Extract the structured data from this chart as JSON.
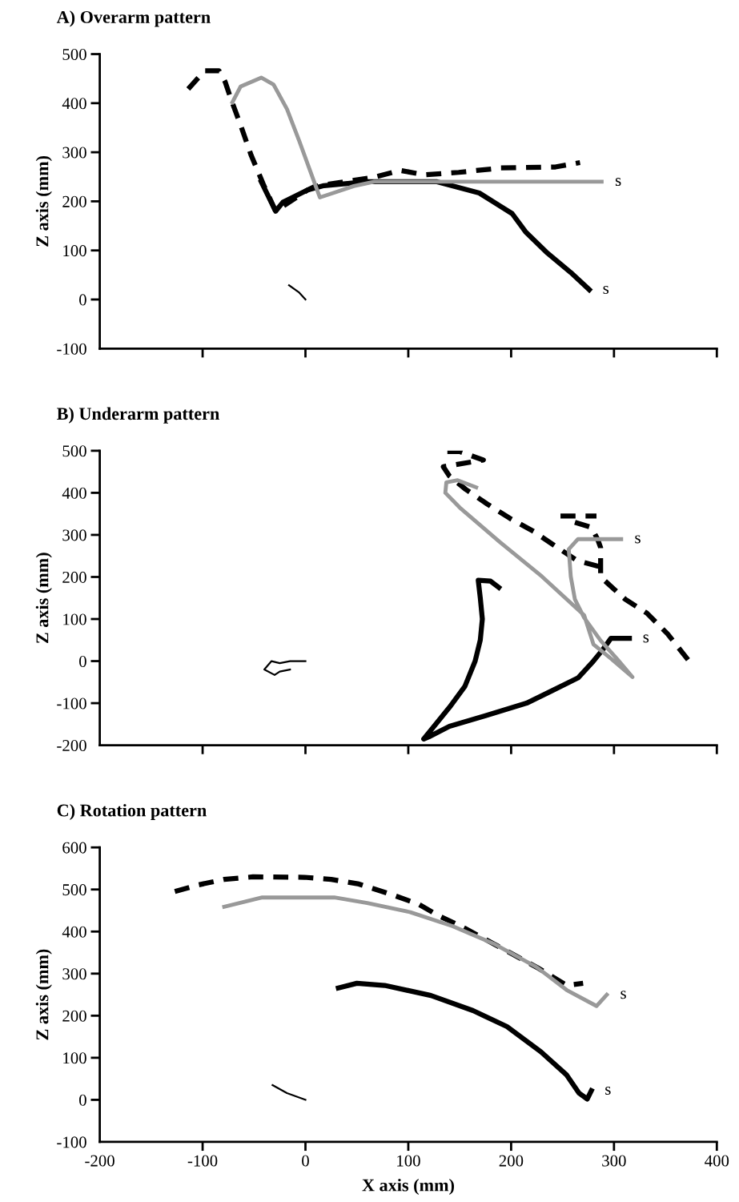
{
  "chart_data": [
    {
      "type": "line",
      "title": "A) Overarm pattern",
      "ylabel": "Z axis (mm)",
      "xlim": [
        -200,
        400
      ],
      "xticks": [
        -200,
        -100,
        0,
        100,
        200,
        300,
        400
      ],
      "ylim": [
        -100,
        500
      ],
      "yticks": [
        -100,
        0,
        100,
        200,
        300,
        400,
        500
      ],
      "tick_labels": "y",
      "grid": false,
      "legend": false,
      "series": [
        {
          "name": "s",
          "color": "#000000",
          "line_style": "solid",
          "x": [
            -43,
            -29,
            -22,
            2,
            18,
            60,
            128,
            169,
            201,
            214,
            234,
            258,
            276
          ],
          "values": [
            240,
            180,
            198,
            223,
            232,
            240,
            240,
            217,
            175,
            138,
            97,
            55,
            20
          ]
        },
        {
          "color": "#000000",
          "line_style": "dashed",
          "x": [
            -114,
            -98,
            -84,
            -78,
            -72,
            -63,
            -53,
            -41,
            -29,
            2,
            10,
            67,
            92,
            116,
            149,
            190,
            243,
            267
          ],
          "values": [
            429,
            466,
            466,
            443,
            406,
            355,
            295,
            235,
            180,
            223,
            231,
            249,
            263,
            254,
            259,
            268,
            270,
            279
          ]
        },
        {
          "name": "s",
          "color": "#999999",
          "line_style": "solid",
          "x": [
            -71,
            -63,
            -43,
            -31,
            -18,
            -6,
            6,
            14,
            27,
            47,
            67,
            288
          ],
          "values": [
            402,
            434,
            452,
            438,
            388,
            323,
            254,
            208,
            217,
            231,
            240,
            240
          ]
        },
        {
          "color": "#000000",
          "line_style": "solid",
          "x": [
            -16,
            -6,
            0
          ],
          "values": [
            29,
            14,
            0
          ]
        }
      ]
    },
    {
      "type": "line",
      "title": "B) Underarm pattern",
      "ylabel": "Z axis (mm)",
      "xlim": [
        -200,
        400
      ],
      "xticks": [
        -200,
        -100,
        0,
        100,
        200,
        300,
        400
      ],
      "ylim": [
        -200,
        500
      ],
      "yticks": [
        -200,
        -100,
        0,
        100,
        200,
        300,
        400,
        500
      ],
      "tick_labels": "y",
      "grid": false,
      "legend": false,
      "series": [
        {
          "name": "s",
          "color": "#000000",
          "line_style": "solid",
          "x": [
            188,
            180,
            168,
            170,
            172,
            170,
            165,
            155,
            140,
            125,
            115,
            120,
            140,
            175,
            215,
            240,
            265,
            280,
            289,
            297,
            315
          ],
          "values": [
            175,
            190,
            192,
            150,
            100,
            50,
            0,
            -60,
            -110,
            -155,
            -185,
            -180,
            -155,
            -130,
            -100,
            -70,
            -40,
            0,
            27,
            54,
            54
          ]
        },
        {
          "color": "#000000",
          "line_style": "dashed",
          "x": [
            138,
            150,
            173,
            134,
            140,
            156,
            177,
            199,
            222,
            242,
            264,
            285,
            null,
            248,
            283,
            null,
            262,
            278,
            284,
            287,
            287,
            311,
            332,
            352,
            373
          ],
          "values": [
            498,
            498,
            478,
            462,
            440,
            408,
            373,
            339,
            308,
            275,
            239,
            225,
            null,
            345,
            345,
            null,
            330,
            318,
            290,
            270,
            200,
            147,
            114,
            65,
            0
          ]
        },
        {
          "name": "s",
          "color": "#999999",
          "line_style": "solid",
          "x": [
            166,
            148,
            137,
            136,
            150,
            189,
            230,
            271,
            280,
            300,
            318,
            303,
            287,
            271,
            262,
            258,
            256,
            265,
            307
          ],
          "values": [
            413,
            430,
            425,
            400,
            365,
            283,
            201,
            109,
            40,
            0,
            -38,
            5,
            49,
            103,
            147,
            201,
            266,
            290,
            290
          ]
        },
        {
          "color": "#000000",
          "line_style": "solid",
          "x": [
            0,
            -15,
            -25,
            -33,
            -40,
            -30,
            -25,
            -15
          ],
          "values": [
            0,
            0,
            -5,
            0,
            -20,
            -33,
            -25,
            -20
          ]
        }
      ]
    },
    {
      "type": "line",
      "title": "C) Rotation pattern",
      "xlabel": "X axis (mm)",
      "ylabel": "Z axis (mm)",
      "xlim": [
        -200,
        400
      ],
      "xticks": [
        -200,
        -100,
        0,
        100,
        200,
        300,
        400
      ],
      "ylim": [
        -100,
        600
      ],
      "yticks": [
        -100,
        0,
        100,
        200,
        300,
        400,
        500,
        600
      ],
      "grid": false,
      "legend": false,
      "series": [
        {
          "name": "s",
          "color": "#000000",
          "line_style": "solid",
          "x": [
            32,
            50,
            77,
            122,
            163,
            196,
            229,
            254,
            266,
            274,
            278
          ],
          "values": [
            266,
            277,
            272,
            248,
            212,
            174,
            114,
            59,
            16,
            2,
            22
          ]
        },
        {
          "color": "#000000",
          "line_style": "dashed",
          "x": [
            -127,
            -104,
            -79,
            -51,
            -1,
            25,
            52,
            85,
            110,
            130,
            151,
            176,
            200,
            225,
            254,
            270
          ],
          "values": [
            495,
            511,
            524,
            530,
            529,
            524,
            513,
            487,
            465,
            437,
            413,
            380,
            348,
            315,
            272,
            277
          ]
        },
        {
          "name": "s",
          "color": "#999999",
          "line_style": "solid",
          "x": [
            -79,
            -42,
            28,
            60,
            102,
            143,
            184,
            225,
            254,
            283,
            293
          ],
          "values": [
            459,
            481,
            481,
            468,
            446,
            413,
            370,
            315,
            261,
            223,
            250
          ]
        },
        {
          "color": "#000000",
          "line_style": "solid",
          "x": [
            -32,
            -18,
            0
          ],
          "values": [
            35,
            16,
            0
          ]
        }
      ]
    }
  ]
}
